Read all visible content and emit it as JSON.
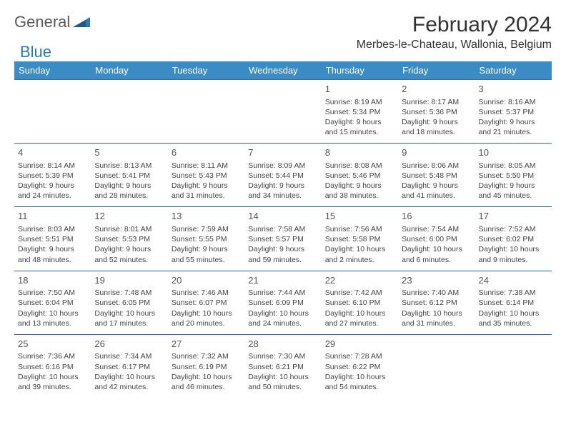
{
  "logo": {
    "part1": "General",
    "part2": "Blue"
  },
  "title": "February 2024",
  "location": "Merbes-le-Chateau, Wallonia, Belgium",
  "colors": {
    "header_bg": "#3b8bc4",
    "header_text": "#ffffff",
    "row_border": "#2d6da3",
    "logo_gray": "#5a5a5a",
    "logo_blue": "#2a7ab8"
  },
  "day_headers": [
    "Sunday",
    "Monday",
    "Tuesday",
    "Wednesday",
    "Thursday",
    "Friday",
    "Saturday"
  ],
  "weeks": [
    [
      null,
      null,
      null,
      null,
      {
        "n": "1",
        "sr": "Sunrise: 8:19 AM",
        "ss": "Sunset: 5:34 PM",
        "dl": "Daylight: 9 hours and 15 minutes."
      },
      {
        "n": "2",
        "sr": "Sunrise: 8:17 AM",
        "ss": "Sunset: 5:36 PM",
        "dl": "Daylight: 9 hours and 18 minutes."
      },
      {
        "n": "3",
        "sr": "Sunrise: 8:16 AM",
        "ss": "Sunset: 5:37 PM",
        "dl": "Daylight: 9 hours and 21 minutes."
      }
    ],
    [
      {
        "n": "4",
        "sr": "Sunrise: 8:14 AM",
        "ss": "Sunset: 5:39 PM",
        "dl": "Daylight: 9 hours and 24 minutes."
      },
      {
        "n": "5",
        "sr": "Sunrise: 8:13 AM",
        "ss": "Sunset: 5:41 PM",
        "dl": "Daylight: 9 hours and 28 minutes."
      },
      {
        "n": "6",
        "sr": "Sunrise: 8:11 AM",
        "ss": "Sunset: 5:43 PM",
        "dl": "Daylight: 9 hours and 31 minutes."
      },
      {
        "n": "7",
        "sr": "Sunrise: 8:09 AM",
        "ss": "Sunset: 5:44 PM",
        "dl": "Daylight: 9 hours and 34 minutes."
      },
      {
        "n": "8",
        "sr": "Sunrise: 8:08 AM",
        "ss": "Sunset: 5:46 PM",
        "dl": "Daylight: 9 hours and 38 minutes."
      },
      {
        "n": "9",
        "sr": "Sunrise: 8:06 AM",
        "ss": "Sunset: 5:48 PM",
        "dl": "Daylight: 9 hours and 41 minutes."
      },
      {
        "n": "10",
        "sr": "Sunrise: 8:05 AM",
        "ss": "Sunset: 5:50 PM",
        "dl": "Daylight: 9 hours and 45 minutes."
      }
    ],
    [
      {
        "n": "11",
        "sr": "Sunrise: 8:03 AM",
        "ss": "Sunset: 5:51 PM",
        "dl": "Daylight: 9 hours and 48 minutes."
      },
      {
        "n": "12",
        "sr": "Sunrise: 8:01 AM",
        "ss": "Sunset: 5:53 PM",
        "dl": "Daylight: 9 hours and 52 minutes."
      },
      {
        "n": "13",
        "sr": "Sunrise: 7:59 AM",
        "ss": "Sunset: 5:55 PM",
        "dl": "Daylight: 9 hours and 55 minutes."
      },
      {
        "n": "14",
        "sr": "Sunrise: 7:58 AM",
        "ss": "Sunset: 5:57 PM",
        "dl": "Daylight: 9 hours and 59 minutes."
      },
      {
        "n": "15",
        "sr": "Sunrise: 7:56 AM",
        "ss": "Sunset: 5:58 PM",
        "dl": "Daylight: 10 hours and 2 minutes."
      },
      {
        "n": "16",
        "sr": "Sunrise: 7:54 AM",
        "ss": "Sunset: 6:00 PM",
        "dl": "Daylight: 10 hours and 6 minutes."
      },
      {
        "n": "17",
        "sr": "Sunrise: 7:52 AM",
        "ss": "Sunset: 6:02 PM",
        "dl": "Daylight: 10 hours and 9 minutes."
      }
    ],
    [
      {
        "n": "18",
        "sr": "Sunrise: 7:50 AM",
        "ss": "Sunset: 6:04 PM",
        "dl": "Daylight: 10 hours and 13 minutes."
      },
      {
        "n": "19",
        "sr": "Sunrise: 7:48 AM",
        "ss": "Sunset: 6:05 PM",
        "dl": "Daylight: 10 hours and 17 minutes."
      },
      {
        "n": "20",
        "sr": "Sunrise: 7:46 AM",
        "ss": "Sunset: 6:07 PM",
        "dl": "Daylight: 10 hours and 20 minutes."
      },
      {
        "n": "21",
        "sr": "Sunrise: 7:44 AM",
        "ss": "Sunset: 6:09 PM",
        "dl": "Daylight: 10 hours and 24 minutes."
      },
      {
        "n": "22",
        "sr": "Sunrise: 7:42 AM",
        "ss": "Sunset: 6:10 PM",
        "dl": "Daylight: 10 hours and 27 minutes."
      },
      {
        "n": "23",
        "sr": "Sunrise: 7:40 AM",
        "ss": "Sunset: 6:12 PM",
        "dl": "Daylight: 10 hours and 31 minutes."
      },
      {
        "n": "24",
        "sr": "Sunrise: 7:38 AM",
        "ss": "Sunset: 6:14 PM",
        "dl": "Daylight: 10 hours and 35 minutes."
      }
    ],
    [
      {
        "n": "25",
        "sr": "Sunrise: 7:36 AM",
        "ss": "Sunset: 6:16 PM",
        "dl": "Daylight: 10 hours and 39 minutes."
      },
      {
        "n": "26",
        "sr": "Sunrise: 7:34 AM",
        "ss": "Sunset: 6:17 PM",
        "dl": "Daylight: 10 hours and 42 minutes."
      },
      {
        "n": "27",
        "sr": "Sunrise: 7:32 AM",
        "ss": "Sunset: 6:19 PM",
        "dl": "Daylight: 10 hours and 46 minutes."
      },
      {
        "n": "28",
        "sr": "Sunrise: 7:30 AM",
        "ss": "Sunset: 6:21 PM",
        "dl": "Daylight: 10 hours and 50 minutes."
      },
      {
        "n": "29",
        "sr": "Sunrise: 7:28 AM",
        "ss": "Sunset: 6:22 PM",
        "dl": "Daylight: 10 hours and 54 minutes."
      },
      null,
      null
    ]
  ]
}
